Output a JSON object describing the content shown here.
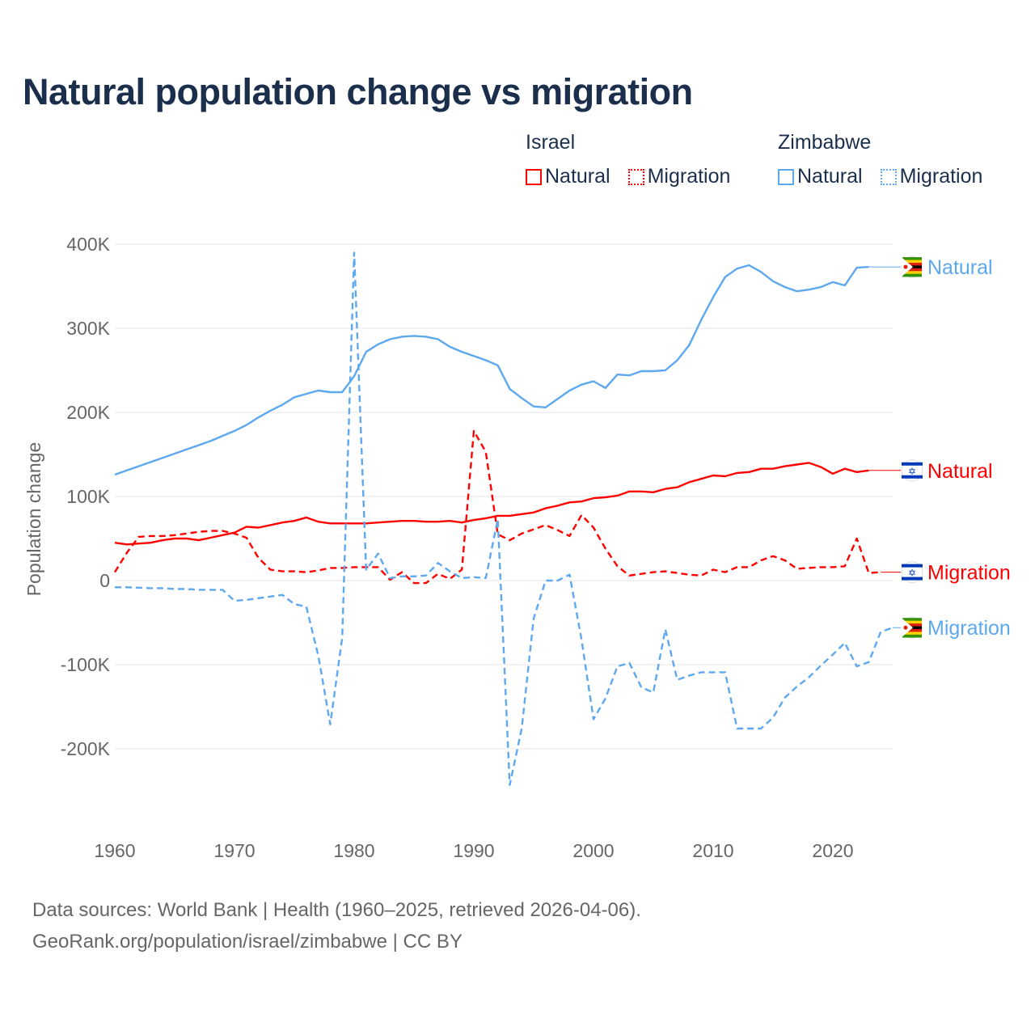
{
  "chart_data": {
    "type": "line",
    "title": "Natural population change vs migration",
    "ylabel": "Population change",
    "xlabel": "",
    "xlim": [
      1960,
      2025
    ],
    "ylim": [
      -250000,
      400000
    ],
    "x_ticks": [
      1960,
      1970,
      1980,
      1990,
      2000,
      2010,
      2020
    ],
    "x_tick_labels": [
      "1960",
      "1970",
      "1980",
      "1990",
      "2000",
      "2010",
      "2020"
    ],
    "y_ticks": [
      -200000,
      -100000,
      0,
      100000,
      200000,
      300000,
      400000
    ],
    "y_tick_labels": [
      "-200K",
      "-100K",
      "0",
      "100K",
      "200K",
      "300K",
      "400K"
    ],
    "grid": true,
    "legend": {
      "placement": "top-right",
      "groups": [
        {
          "name": "Israel",
          "items": [
            "Natural",
            "Migration"
          ]
        },
        {
          "name": "Zimbabwe",
          "items": [
            "Natural",
            "Migration"
          ]
        }
      ]
    },
    "x_start": 1960,
    "series": [
      {
        "country": "Zimbabwe",
        "name": "Natural",
        "color": "#5da8ef",
        "dash": false,
        "end_label": "Natural",
        "values": [
          126000,
          131000,
          136000,
          141000,
          146000,
          151000,
          156000,
          161000,
          166000,
          172000,
          178000,
          185000,
          194000,
          202000,
          209000,
          218000,
          222000,
          226000,
          224000,
          224000,
          243000,
          272000,
          281000,
          287000,
          290000,
          291000,
          290000,
          287000,
          278000,
          272000,
          267000,
          262000,
          256000,
          228000,
          217000,
          207000,
          206000,
          216000,
          226000,
          233000,
          237000,
          229000,
          245000,
          244000,
          249000,
          249000,
          250000,
          262000,
          280000,
          310000,
          337000,
          361000,
          371000,
          375000,
          367000,
          356000,
          349000,
          344000,
          346000,
          349000,
          355000,
          351000,
          372000,
          373000
        ]
      },
      {
        "country": "Israel",
        "name": "Natural",
        "color": "#ff0000",
        "dash": false,
        "end_label": "Natural",
        "values": [
          45000,
          43000,
          44000,
          45000,
          48000,
          50000,
          50000,
          48000,
          51000,
          54000,
          57000,
          64000,
          63000,
          66000,
          69000,
          71000,
          75000,
          70000,
          68000,
          68000,
          68000,
          68000,
          69000,
          70000,
          71000,
          71000,
          70000,
          70000,
          71000,
          69000,
          72000,
          74000,
          77000,
          77000,
          79000,
          81000,
          86000,
          89000,
          93000,
          94000,
          98000,
          99000,
          101000,
          106000,
          106000,
          105000,
          109000,
          111000,
          117000,
          121000,
          125000,
          124000,
          128000,
          129000,
          133000,
          133000,
          136000,
          138000,
          140000,
          135000,
          127000,
          133000,
          129000,
          131000
        ]
      },
      {
        "country": "Israel",
        "name": "Migration",
        "color": "#ff0000",
        "dash": true,
        "end_label": "Migration",
        "values": [
          10000,
          33000,
          52000,
          53000,
          53000,
          54000,
          56000,
          58000,
          59000,
          59000,
          56000,
          51000,
          27000,
          13000,
          11000,
          11000,
          10000,
          12000,
          15000,
          15000,
          16000,
          16000,
          16000,
          1000,
          10000,
          -3000,
          -3000,
          8000,
          2000,
          13000,
          178000,
          153000,
          55000,
          48000,
          56000,
          61000,
          66000,
          60000,
          53000,
          78000,
          63000,
          38000,
          17000,
          6000,
          8000,
          10000,
          11000,
          9000,
          7000,
          6000,
          13000,
          10000,
          16000,
          16000,
          24000,
          29000,
          24000,
          14000,
          15000,
          16000,
          16000,
          17000,
          50000,
          9000,
          10000
        ]
      },
      {
        "country": "Zimbabwe",
        "name": "Migration",
        "color": "#5da8ef",
        "dash": true,
        "end_label": "Migration",
        "values": [
          -8000,
          -8000,
          -8500,
          -9000,
          -9000,
          -10000,
          -10000,
          -11000,
          -11000,
          -11000,
          -24000,
          -23000,
          -21000,
          -19000,
          -17000,
          -28000,
          -31000,
          -89000,
          -171000,
          -68000,
          390000,
          13000,
          32000,
          3000,
          5000,
          5000,
          6000,
          21000,
          11000,
          3000,
          4000,
          3000,
          73000,
          -243000,
          -176000,
          -45000,
          0,
          0,
          7000,
          -70000,
          -165000,
          -140000,
          -102000,
          -98000,
          -127000,
          -133000,
          -58000,
          -118000,
          -113000,
          -109000,
          -109000,
          -109000,
          -176000,
          -176000,
          -176000,
          -163000,
          -139000,
          -126000,
          -115000,
          -101000,
          -88000,
          -74000,
          -102000,
          -97000,
          -61000,
          -56000
        ]
      }
    ]
  },
  "footer": {
    "line1": "Data sources: World Bank | Health (1960–2025, retrieved 2026-04-06).",
    "line2": "GeoRank.org/population/israel/zimbabwe | CC BY"
  }
}
